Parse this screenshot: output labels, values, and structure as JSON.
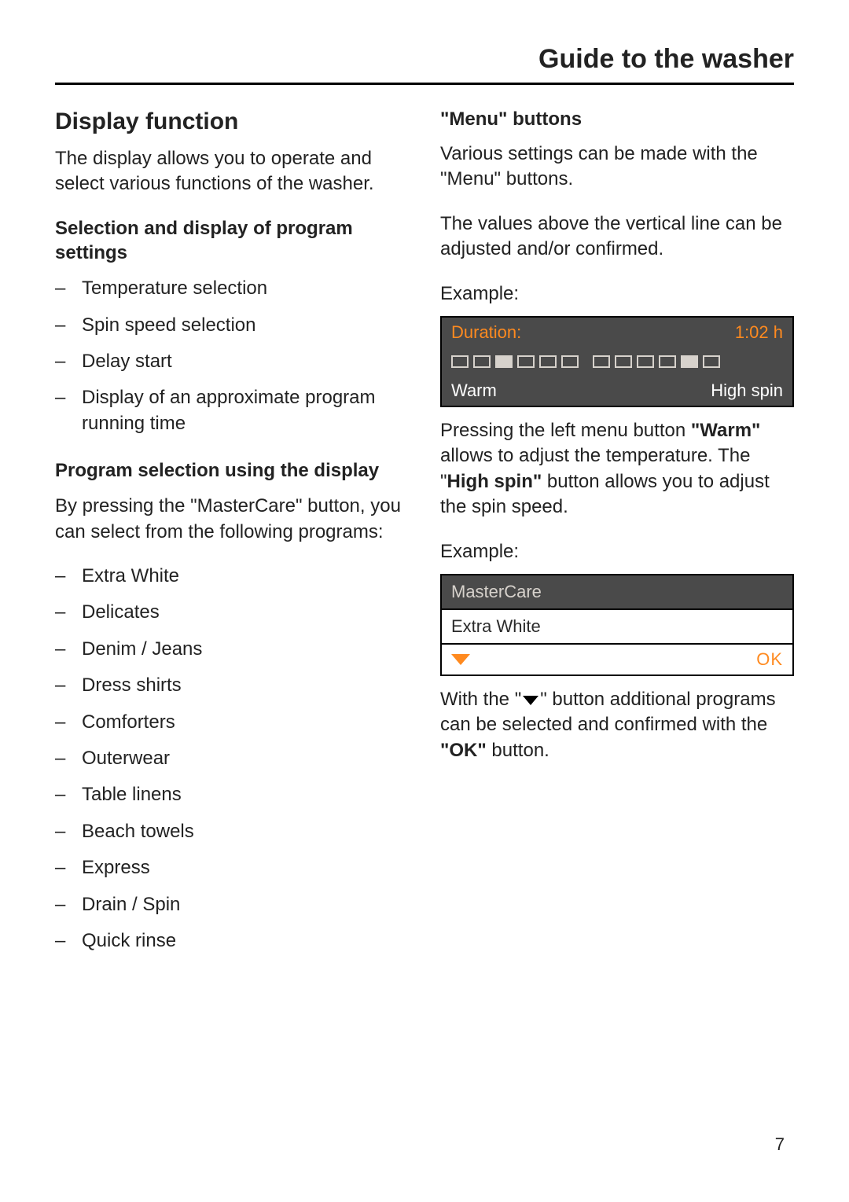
{
  "page": {
    "title": "Guide to the washer",
    "number": "7"
  },
  "left": {
    "h2": "Display function",
    "intro": "The display allows you to operate and select various functions of the washer.",
    "sub1": "Selection and display of program settings",
    "settings": [
      "Temperature selection",
      "Spin speed selection",
      "Delay start",
      "Display of an approximate program running time"
    ],
    "sub2": "Program selection using the display",
    "mastercare_intro": "By pressing the \"MasterCare\" button, you can select from the following programs:",
    "programs": [
      "Extra White",
      "Delicates",
      "Denim / Jeans",
      "Dress shirts",
      "Comforters",
      "Outerwear",
      "Table linens",
      "Beach towels",
      "Express",
      "Drain / Spin",
      "Quick rinse"
    ]
  },
  "right": {
    "h3": "\"Menu\" buttons",
    "p1": "Various settings can be made with the \"Menu\" buttons.",
    "p2": "The values above the vertical line can be adjusted and/or confirmed.",
    "example": "Example:",
    "lcd1": {
      "duration_label": "Duration:",
      "duration_value": "1:02 h",
      "seg_pattern_left": [
        0,
        0,
        1,
        0,
        0,
        0
      ],
      "seg_pattern_right": [
        0,
        0,
        0,
        0,
        1,
        0
      ],
      "left_btn": "Warm",
      "right_btn": "High spin",
      "colors": {
        "bg": "#4a4a4a",
        "accent": "#ff8a1f",
        "segment": "#d7d2cc",
        "text_light": "#ffffff"
      }
    },
    "after_lcd1_pre": "Pressing the left menu button ",
    "after_lcd1_b1": "\"Warm\"",
    "after_lcd1_mid": " allows to adjust the temperature.  The \"",
    "after_lcd1_b2": "High spin\"",
    "after_lcd1_post": " button allows you to adjust the spin speed.",
    "lcd2": {
      "top": "MasterCare",
      "mid": "Extra White",
      "ok": "OK"
    },
    "after_lcd2_pre": "With the \"",
    "after_lcd2_mid": "\" button additional programs can be selected and confirmed with the ",
    "after_lcd2_b": "\"OK\"",
    "after_lcd2_post": " button."
  }
}
